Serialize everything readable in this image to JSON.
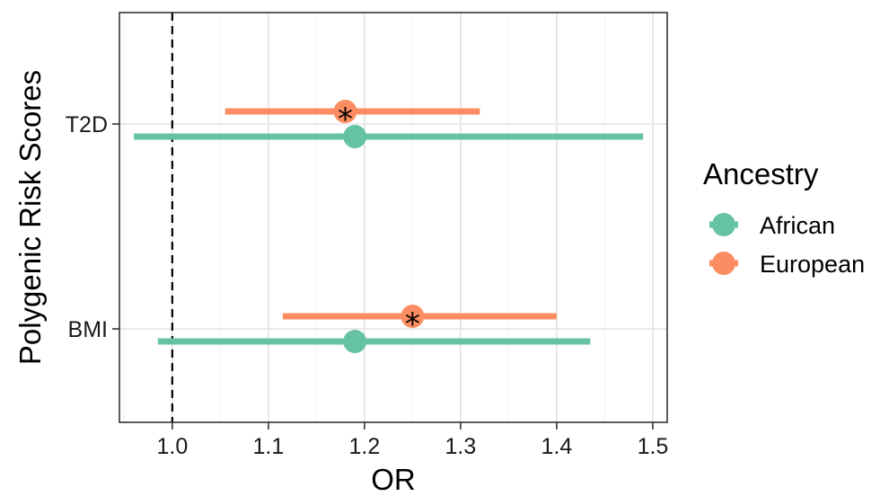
{
  "chart_data": {
    "type": "forest",
    "xlabel": "OR",
    "ylabel": "Polygenic Risk Scores",
    "xlim": [
      0.945,
      1.515
    ],
    "x_ticks": [
      1.0,
      1.1,
      1.2,
      1.3,
      1.4,
      1.5
    ],
    "x_tick_labels": [
      "1.0",
      "1.1",
      "1.2",
      "1.3",
      "1.4",
      "1.5"
    ],
    "categories": [
      "T2D",
      "BMI"
    ],
    "reference_line": 1.0,
    "grid": true,
    "legend": {
      "title": "Ancestry",
      "position": "right",
      "entries": [
        {
          "label": "African",
          "color": "#66C2A5"
        },
        {
          "label": "European",
          "color": "#FC8D62"
        }
      ]
    },
    "series": [
      {
        "name": "African",
        "color": "#66C2A5",
        "points": [
          {
            "category": "T2D",
            "or": 1.19,
            "lower": 0.96,
            "upper": 1.49,
            "significant": false
          },
          {
            "category": "BMI",
            "or": 1.19,
            "lower": 0.985,
            "upper": 1.435,
            "significant": false
          }
        ]
      },
      {
        "name": "European",
        "color": "#FC8D62",
        "points": [
          {
            "category": "T2D",
            "or": 1.18,
            "lower": 1.055,
            "upper": 1.32,
            "significant": true
          },
          {
            "category": "BMI",
            "or": 1.25,
            "lower": 1.115,
            "upper": 1.4,
            "significant": true
          }
        ]
      }
    ],
    "significance_marker": "*"
  }
}
